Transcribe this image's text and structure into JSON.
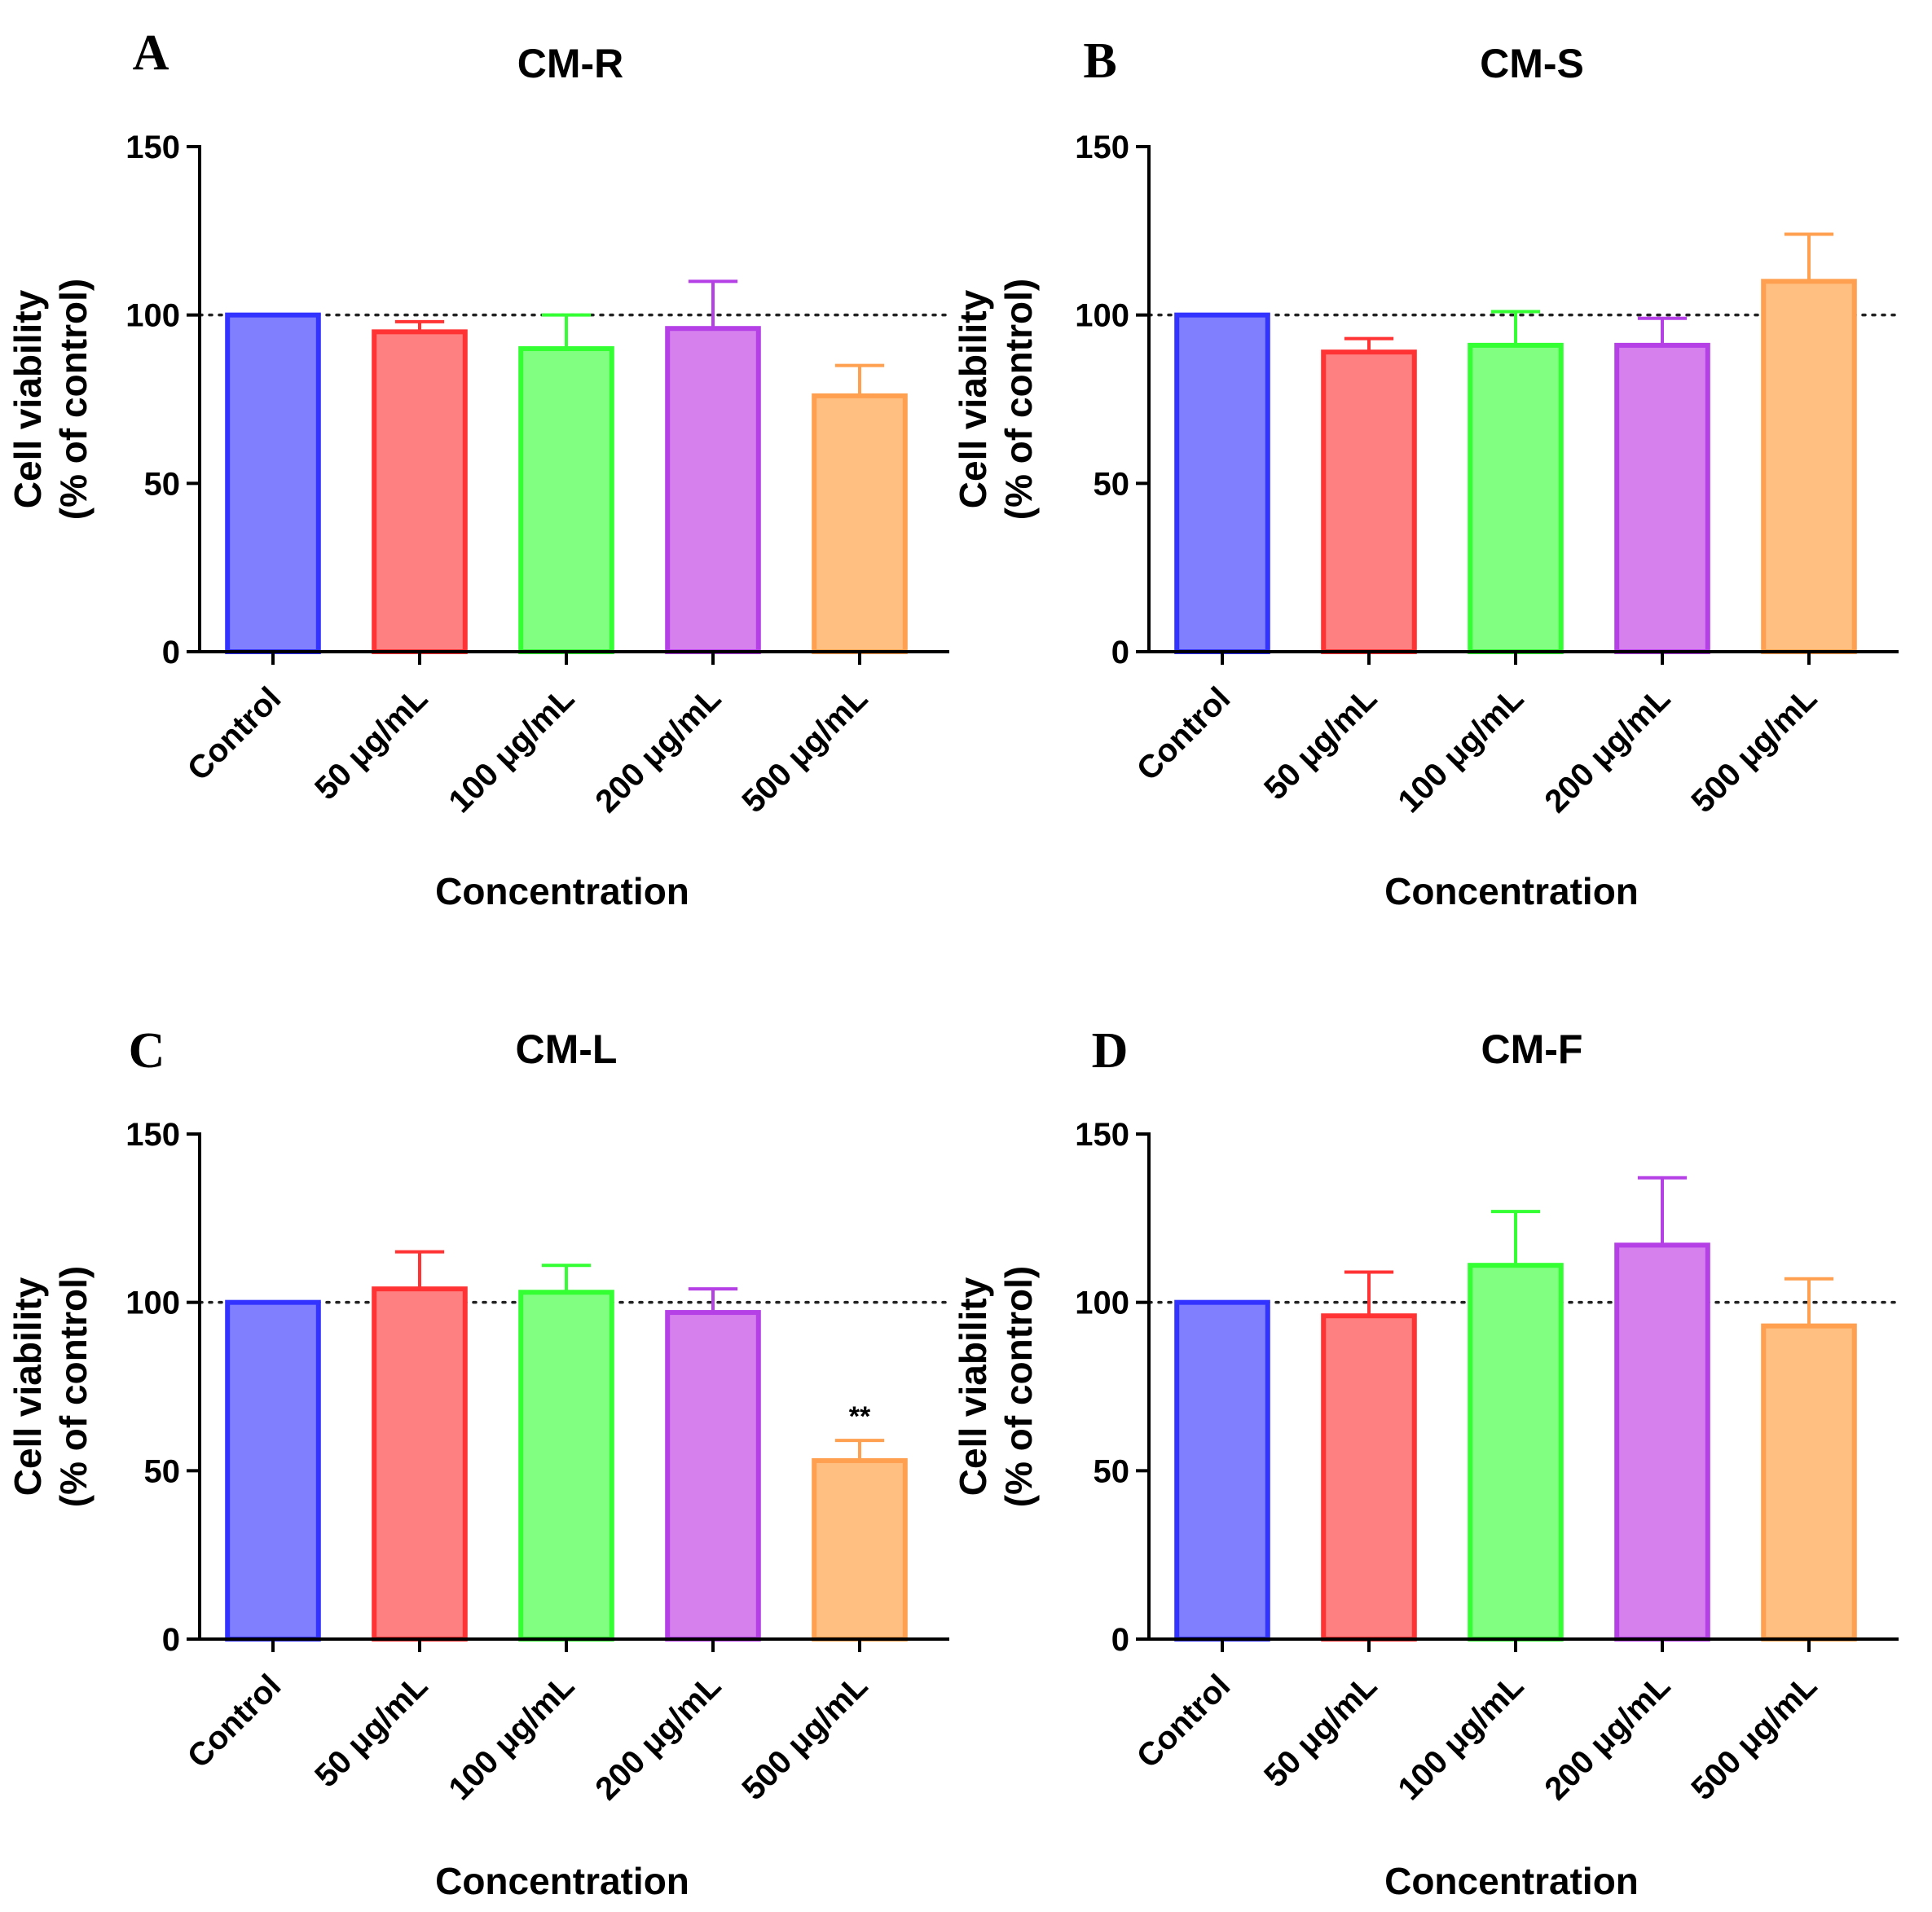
{
  "chart_data": [
    {
      "type": "bar",
      "panel": "A",
      "title": "CM-R",
      "xlabel": "Concentration",
      "ylabel_line1": "Cell viability",
      "ylabel_line2": "(% of control)",
      "categories": [
        "Control",
        "50 μg/mL",
        "100 μg/mL",
        "200 μg/mL",
        "500 μg/mL"
      ],
      "values": [
        100,
        95,
        90,
        96,
        76
      ],
      "errors": [
        0,
        3,
        10,
        14,
        9
      ],
      "annotations": [
        "",
        "",
        "",
        "",
        ""
      ],
      "ylim": [
        0,
        150
      ],
      "yticks": [
        0,
        50,
        100,
        150
      ],
      "reference_line": 100
    },
    {
      "type": "bar",
      "panel": "B",
      "title": "CM-S",
      "xlabel": "Concentration",
      "ylabel_line1": "Cell viability",
      "ylabel_line2": "(% of control)",
      "categories": [
        "Control",
        "50 μg/mL",
        "100 μg/mL",
        "200 μg/mL",
        "500 μg/mL"
      ],
      "values": [
        100,
        89,
        91,
        91,
        110
      ],
      "errors": [
        0,
        4,
        10,
        8,
        14
      ],
      "annotations": [
        "",
        "",
        "",
        "",
        ""
      ],
      "ylim": [
        0,
        150
      ],
      "yticks": [
        0,
        50,
        100,
        150
      ],
      "reference_line": 100
    },
    {
      "type": "bar",
      "panel": "C",
      "title": "CM-L",
      "xlabel": "Concentration",
      "ylabel_line1": "Cell viability",
      "ylabel_line2": "(% of control)",
      "categories": [
        "Control",
        "50 μg/mL",
        "100 μg/mL",
        "200 μg/mL",
        "500 μg/mL"
      ],
      "values": [
        100,
        104,
        103,
        97,
        53
      ],
      "errors": [
        0,
        11,
        8,
        7,
        6
      ],
      "annotations": [
        "",
        "",
        "",
        "",
        "**"
      ],
      "ylim": [
        0,
        150
      ],
      "yticks": [
        0,
        50,
        100,
        150
      ],
      "reference_line": 100
    },
    {
      "type": "bar",
      "panel": "D",
      "title": "CM-F",
      "xlabel": "Concentration",
      "ylabel_line1": "Cell viability",
      "ylabel_line2": "(% of control)",
      "categories": [
        "Control",
        "50 μg/mL",
        "100 μg/mL",
        "200 μg/mL",
        "500 μg/mL"
      ],
      "values": [
        100,
        96,
        111,
        117,
        93
      ],
      "errors": [
        0,
        13,
        16,
        20,
        14
      ],
      "annotations": [
        "",
        "",
        "",
        "",
        ""
      ],
      "ylim": [
        0,
        150
      ],
      "yticks": [
        0,
        50,
        100,
        150
      ],
      "reference_line": 100
    }
  ],
  "colors": {
    "fills": [
      "#8080ff",
      "#ff8080",
      "#80ff80",
      "#d680ee",
      "#ffbf80"
    ],
    "strokes": [
      "#3333ff",
      "#ff3333",
      "#33ff33",
      "#b440e6",
      "#ffa050"
    ],
    "axis": "#000000",
    "reference": "#222222"
  }
}
